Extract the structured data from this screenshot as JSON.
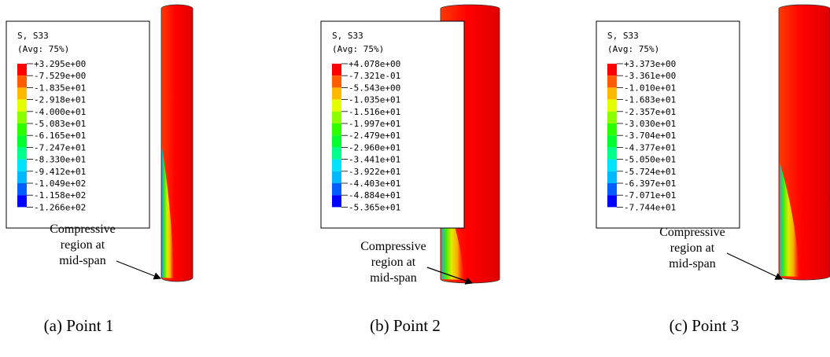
{
  "panels": [
    {
      "legend": {
        "title": "S, S33",
        "subtitle": "(Avg: 75%)",
        "labels": [
          "+3.295e+00",
          "-7.529e+00",
          "-1.835e+01",
          "-2.918e+01",
          "-4.000e+01",
          "-5.083e+01",
          "-6.165e+01",
          "-7.247e+01",
          "-8.330e+01",
          "-9.412e+01",
          "-1.049e+02",
          "-1.158e+02",
          "-1.266e+02"
        ]
      },
      "annotation": [
        "Compressive",
        "region at",
        "mid-span"
      ],
      "caption": "(a) Point 1"
    },
    {
      "legend": {
        "title": "S, S33",
        "subtitle": "(Avg: 75%)",
        "labels": [
          "+4.078e+00",
          "-7.321e-01",
          "-5.543e+00",
          "-1.035e+01",
          "-1.516e+01",
          "-1.997e+01",
          "-2.479e+01",
          "-2.960e+01",
          "-3.441e+01",
          "-3.922e+01",
          "-4.403e+01",
          "-4.884e+01",
          "-5.365e+01"
        ]
      },
      "annotation": [
        "Compressive",
        "region at",
        "mid-span"
      ],
      "caption": "(b) Point 2"
    },
    {
      "legend": {
        "title": "S, S33",
        "subtitle": "(Avg: 75%)",
        "labels": [
          "+3.373e+00",
          "-3.361e+00",
          "-1.010e+01",
          "-1.683e+01",
          "-2.357e+01",
          "-3.030e+01",
          "-3.704e+01",
          "-4.377e+01",
          "-5.050e+01",
          "-5.724e+01",
          "-6.397e+01",
          "-7.071e+01",
          "-7.744e+01"
        ]
      },
      "annotation": [
        "Compressive",
        "region at",
        "mid-span"
      ],
      "caption": "(c) Point 3"
    }
  ]
}
